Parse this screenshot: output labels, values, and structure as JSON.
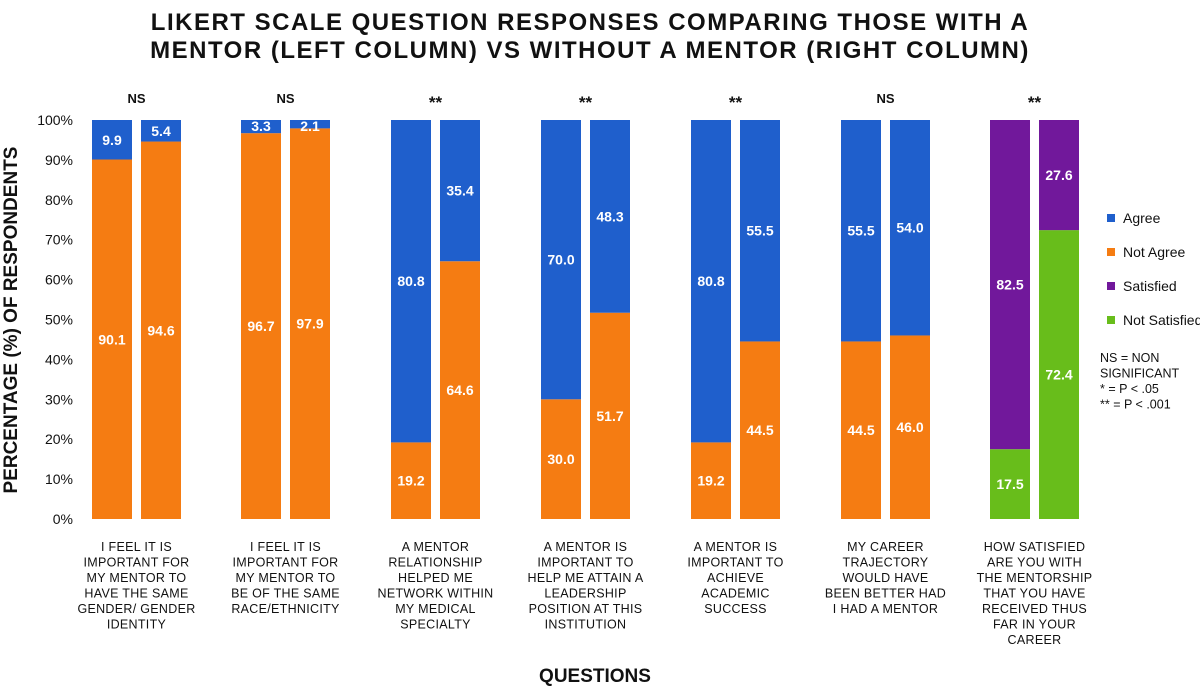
{
  "chart_data": {
    "type": "bar",
    "stacked": true,
    "title_lines": [
      "LIKERT SCALE QUESTION RESPONSES COMPARING THOSE WITH A",
      "MENTOR (LEFT COLUMN) VS WITHOUT A MENTOR (RIGHT COLUMN)"
    ],
    "xlabel": "QUESTIONS",
    "ylabel": "PERCENTAGE (%) OF RESPONDENTS",
    "ylim": [
      0,
      100
    ],
    "yticks": [
      "0%",
      "10%",
      "20%",
      "30%",
      "40%",
      "50%",
      "60%",
      "70%",
      "80%",
      "90%",
      "100%"
    ],
    "grid": false,
    "legend_position": "right",
    "legend": [
      {
        "label": "Agree",
        "color": "#1f5fcc"
      },
      {
        "label": "Not Agree",
        "color": "#f57c12"
      },
      {
        "label": "Satisfied",
        "color": "#71189b"
      },
      {
        "label": "Not Satisfied",
        "color": "#68bd1b"
      }
    ],
    "notes": [
      "NS = NON",
      "SIGNIFICANT",
      "* = P < .05",
      "** = P < .001"
    ],
    "groups": [
      {
        "question_lines": [
          "I FEEL IT IS",
          "IMPORTANT FOR",
          "MY MENTOR TO",
          "HAVE THE SAME",
          "GENDER/ GENDER",
          "IDENTITY"
        ],
        "significance": "NS",
        "bars": [
          {
            "column": "with mentor",
            "bottom": {
              "series": "Not Agree",
              "value": 90.1,
              "label": "90.1"
            },
            "top": {
              "series": "Agree",
              "value": 9.9,
              "label": "9.9"
            }
          },
          {
            "column": "without mentor",
            "bottom": {
              "series": "Not Agree",
              "value": 94.6,
              "label": "94.6"
            },
            "top": {
              "series": "Agree",
              "value": 5.4,
              "label": "5.4"
            }
          }
        ]
      },
      {
        "question_lines": [
          "I FEEL IT IS",
          "IMPORTANT FOR",
          "MY MENTOR TO",
          "BE OF THE SAME",
          "RACE/ETHNICITY"
        ],
        "significance": "NS",
        "bars": [
          {
            "column": "with mentor",
            "bottom": {
              "series": "Not Agree",
              "value": 96.7,
              "label": "96.7"
            },
            "top": {
              "series": "Agree",
              "value": 3.3,
              "label": "3.3"
            }
          },
          {
            "column": "without mentor",
            "bottom": {
              "series": "Not Agree",
              "value": 97.9,
              "label": "97.9"
            },
            "top": {
              "series": "Agree",
              "value": 2.1,
              "label": "2.1"
            }
          }
        ]
      },
      {
        "question_lines": [
          "A MENTOR",
          "RELATIONSHIP",
          "HELPED ME",
          "NETWORK WITHIN",
          "MY MEDICAL",
          "SPECIALTY"
        ],
        "significance": "**",
        "bars": [
          {
            "column": "with mentor",
            "bottom": {
              "series": "Not Agree",
              "value": 19.2,
              "label": "19.2"
            },
            "top": {
              "series": "Agree",
              "value": 80.8,
              "label": "80.8"
            }
          },
          {
            "column": "without mentor",
            "bottom": {
              "series": "Not Agree",
              "value": 64.6,
              "label": "64.6"
            },
            "top": {
              "series": "Agree",
              "value": 35.4,
              "label": "35.4"
            }
          }
        ]
      },
      {
        "question_lines": [
          "A MENTOR IS",
          "IMPORTANT TO",
          "HELP ME ATTAIN A",
          "LEADERSHIP",
          "POSITION AT THIS",
          "INSTITUTION"
        ],
        "significance": "**",
        "bars": [
          {
            "column": "with mentor",
            "bottom": {
              "series": "Not Agree",
              "value": 30.0,
              "label": "30.0"
            },
            "top": {
              "series": "Agree",
              "value": 70.0,
              "label": "70.0"
            }
          },
          {
            "column": "without mentor",
            "bottom": {
              "series": "Not Agree",
              "value": 51.7,
              "label": "51.7"
            },
            "top": {
              "series": "Agree",
              "value": 48.3,
              "label": "48.3"
            }
          }
        ]
      },
      {
        "question_lines": [
          "A MENTOR IS",
          "IMPORTANT TO",
          "ACHIEVE",
          "ACADEMIC",
          "SUCCESS"
        ],
        "significance": "**",
        "bars": [
          {
            "column": "with mentor",
            "bottom": {
              "series": "Not Agree",
              "value": 19.2,
              "label": "19.2"
            },
            "top": {
              "series": "Agree",
              "value": 80.8,
              "label": "80.8"
            }
          },
          {
            "column": "without mentor",
            "bottom": {
              "series": "Not Agree",
              "value": 44.5,
              "label": "44.5"
            },
            "top": {
              "series": "Agree",
              "value": 55.5,
              "label": "55.5"
            }
          }
        ]
      },
      {
        "question_lines": [
          "MY CAREER",
          "TRAJECTORY",
          "WOULD HAVE",
          "BEEN BETTER HAD",
          "I HAD A MENTOR"
        ],
        "significance": "NS",
        "bars": [
          {
            "column": "with mentor",
            "bottom": {
              "series": "Not Agree",
              "value": 44.5,
              "label": "44.5"
            },
            "top": {
              "series": "Agree",
              "value": 55.5,
              "label": "55.5"
            }
          },
          {
            "column": "without mentor",
            "bottom": {
              "series": "Not Agree",
              "value": 46.0,
              "label": "46.0"
            },
            "top": {
              "series": "Agree",
              "value": 54.0,
              "label": "54.0"
            }
          }
        ]
      },
      {
        "question_lines": [
          "HOW SATISFIED",
          "ARE YOU WITH",
          "THE MENTORSHIP",
          "THAT YOU HAVE",
          "RECEIVED THUS",
          "FAR IN YOUR",
          "CAREER"
        ],
        "significance": "**",
        "bars": [
          {
            "column": "with mentor",
            "bottom": {
              "series": "Not Satisfied",
              "value": 17.5,
              "label": "17.5"
            },
            "top": {
              "series": "Satisfied",
              "value": 82.5,
              "label": "82.5"
            }
          },
          {
            "column": "without mentor",
            "bottom": {
              "series": "Not Satisfied",
              "value": 72.4,
              "label": "72.4"
            },
            "top": {
              "series": "Satisfied",
              "value": 27.6,
              "label": "27.6"
            }
          }
        ]
      }
    ]
  }
}
